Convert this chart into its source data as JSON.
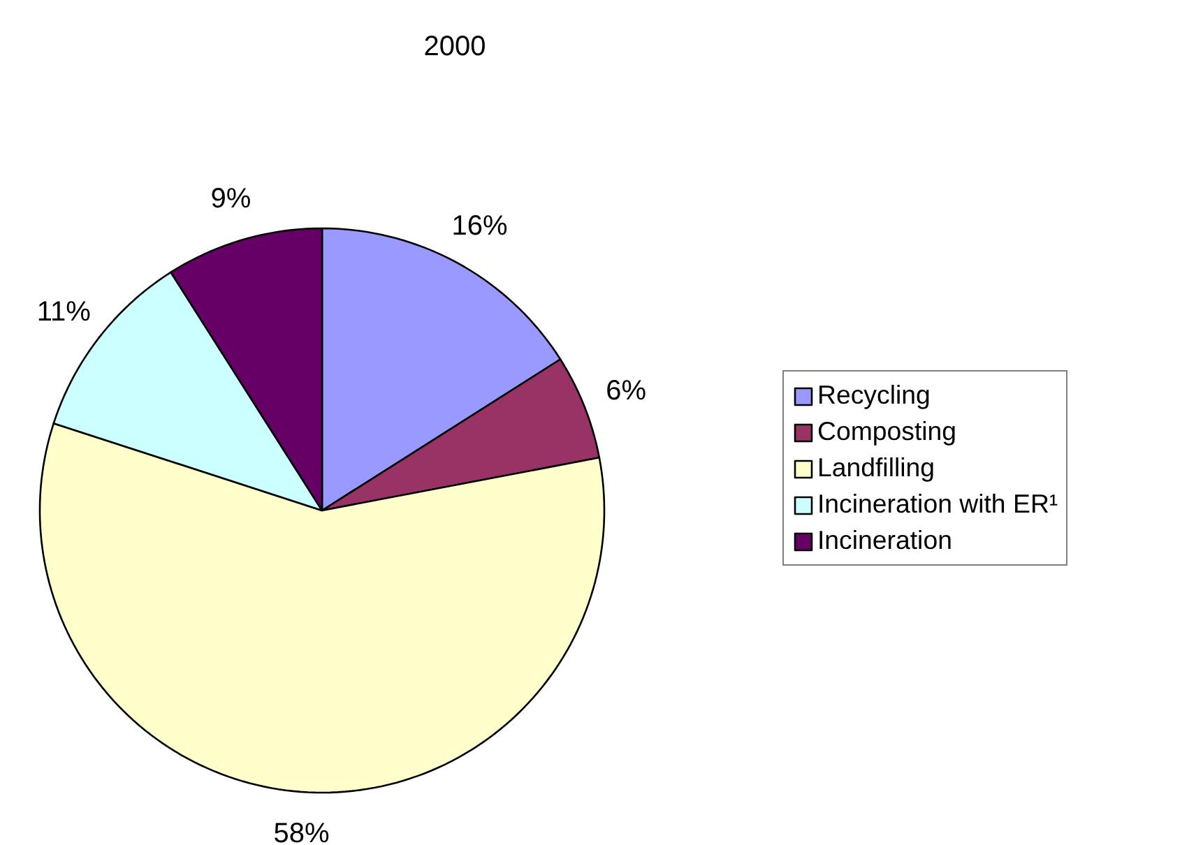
{
  "chart_data": {
    "type": "pie",
    "title": "2000",
    "categories": [
      "Recycling",
      "Composting",
      "Landfilling",
      "Incineration with ER¹",
      "Incineration"
    ],
    "values": [
      16,
      6,
      58,
      11,
      9
    ],
    "value_labels": [
      "16%",
      "6%",
      "58%",
      "11%",
      "9%"
    ],
    "colors": [
      "#9999ff",
      "#993366",
      "#ffffcc",
      "#ccffff",
      "#660066"
    ],
    "legend": "right"
  }
}
